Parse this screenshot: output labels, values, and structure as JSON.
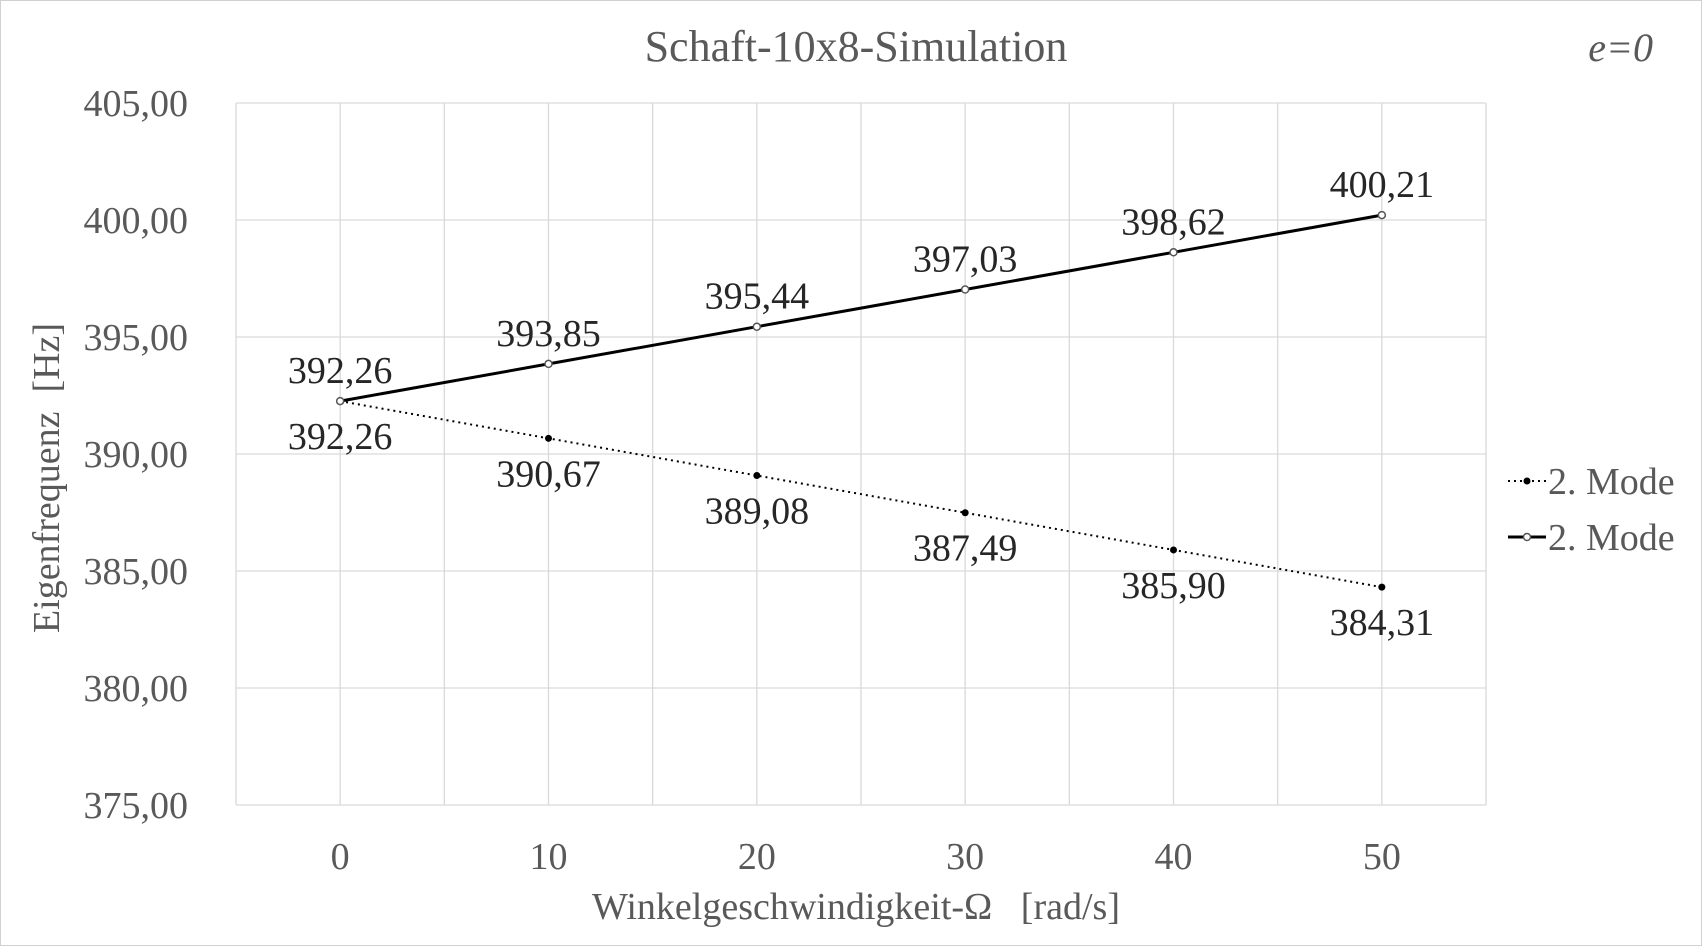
{
  "chart_data": {
    "type": "line",
    "title": "Schaft-10x8-Simulation",
    "annotation": "e=0",
    "xlabel": "Winkelgeschwindigkeit-Ω   [rad/s]",
    "ylabel": "Eigenfrequenz  [Hz]",
    "x": [
      0,
      10,
      20,
      30,
      40,
      50
    ],
    "x_ticks": [
      "0",
      "10",
      "20",
      "30",
      "40",
      "50"
    ],
    "xlim": [
      -5,
      55
    ],
    "ylim": [
      375,
      405
    ],
    "y_ticks": [
      "375,00",
      "380,00",
      "385,00",
      "390,00",
      "395,00",
      "400,00",
      "405,00"
    ],
    "y_tick_values": [
      375,
      380,
      385,
      390,
      395,
      400,
      405
    ],
    "grid": true,
    "legend_position": "right",
    "series": [
      {
        "name": "2. Mode",
        "style": "dotted",
        "marker": "filled",
        "color": "#000000",
        "values": [
          392.26,
          390.67,
          389.08,
          387.49,
          385.9,
          384.31
        ],
        "labels": [
          "392,26",
          "390,67",
          "389,08",
          "387,49",
          "385,90",
          "384,31"
        ]
      },
      {
        "name": "2. Mode",
        "style": "solid",
        "marker": "hollow",
        "color": "#000000",
        "values": [
          392.26,
          393.85,
          395.44,
          397.03,
          398.62,
          400.21
        ],
        "labels": [
          "392,26",
          "393,85",
          "395,44",
          "397,03",
          "398,62",
          "400,21"
        ]
      }
    ]
  }
}
